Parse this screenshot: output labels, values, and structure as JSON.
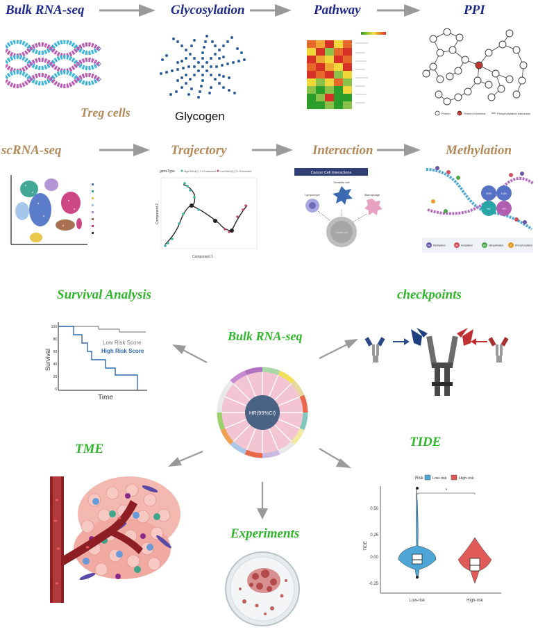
{
  "colors": {
    "navy": "#1d2a8a",
    "gold": "#b48a5a",
    "green": "#2fb62a",
    "arrow": "#9a9a9a"
  },
  "row1": {
    "bulk": "Bulk RNA-seq",
    "glyco": "Glycosylation",
    "pathway": "Pathway",
    "ppi": "PPI",
    "treg": "Treg cells",
    "glycogen": "Glycogen",
    "ppi_legend": [
      "Protein",
      "Protein of interest",
      "Phosphorylation interaction"
    ]
  },
  "row2": {
    "scrna": "scRNA-seq",
    "trajectory": "Trajectory",
    "interaction": "Interaction",
    "methylation": "Methylation",
    "traj_legend": [
      "geneType",
      "High BAG4(+) T.1 Enrichment",
      "Low BAG4(+) T.1 Enrichment"
    ],
    "traj_xlabel": "Component 1",
    "traj_ylabel": "Component 2",
    "cci_title": "Cancer Cell Interactions",
    "cci_cells": [
      "Dendritic cell",
      "Lymphocyte",
      "Macrophage",
      "Cancer cell"
    ],
    "meth_nodes": [
      "H2B",
      "H2A",
      "H4",
      "H3"
    ],
    "meth_legend": [
      {
        "k": "Me",
        "t": "Methylation"
      },
      {
        "k": "Ac",
        "t": "Acetylation"
      },
      {
        "k": "Ub",
        "t": "Ubiquitination"
      },
      {
        "k": "P",
        "t": "Phosphorylation"
      }
    ]
  },
  "center": {
    "label": "Bulk RNA-seq",
    "hr": "HR(95%CI)"
  },
  "survival": {
    "title": "Survival Analysis",
    "low": "Low Risk Score",
    "high": "High Risk Score",
    "xlabel": "Time",
    "ylabel": "Survival",
    "yticks": [
      "100",
      "80",
      "60",
      "40",
      "20",
      "0"
    ]
  },
  "checkpoints": {
    "title": "checkpoints"
  },
  "tme": {
    "title": "TME"
  },
  "tide": {
    "title": "TIDE",
    "legend_title": "Risk",
    "legend": [
      "Low-risk",
      "High-risk"
    ],
    "ylabel": "TIDE",
    "yticks": [
      "0.50",
      "0.25",
      "0.00",
      "-0.25"
    ],
    "xticks": [
      "Low-risk",
      "High-risk"
    ],
    "sig": "*"
  },
  "experiments": {
    "title": "Experiments"
  }
}
